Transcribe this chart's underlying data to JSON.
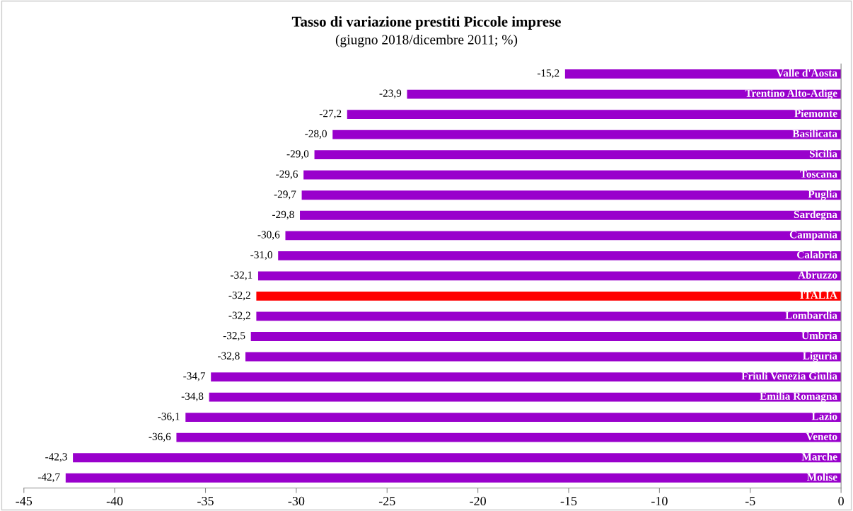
{
  "chart_data": {
    "type": "bar",
    "orientation": "horizontal",
    "title": "Tasso di variazione prestiti Piccole imprese",
    "subtitle": "(giugno 2018/dicembre 2011; %)",
    "categories": [
      "Valle d'Aosta",
      "Trentino Alto-Adige",
      "Piemonte",
      "Basilicata",
      "Sicilia",
      "Toscana",
      "Puglia",
      "Sardegna",
      "Campania",
      "Calabria",
      "Abruzzo",
      "ITALIA",
      "Lombardia",
      "Umbria",
      "Liguria",
      "Friuli Venezia Giulia",
      "Emilia Romagna",
      "Lazio",
      "Veneto",
      "Marche",
      "Molise"
    ],
    "values": [
      -15.2,
      -23.9,
      -27.2,
      -28.0,
      -29.0,
      -29.6,
      -29.7,
      -29.8,
      -30.6,
      -31.0,
      -32.1,
      -32.2,
      -32.2,
      -32.5,
      -32.8,
      -34.7,
      -34.8,
      -36.1,
      -36.6,
      -42.3,
      -42.7
    ],
    "value_labels": [
      "-15,2",
      "-23,9",
      "-27,2",
      "-28,0",
      "-29,0",
      "-29,6",
      "-29,7",
      "-29,8",
      "-30,6",
      "-31,0",
      "-32,1",
      "-32,2",
      "-32,2",
      "-32,5",
      "-32,8",
      "-34,7",
      "-34,8",
      "-36,1",
      "-36,6",
      "-42,3",
      "-42,7"
    ],
    "colors": [
      "#9900cc",
      "#9900cc",
      "#9900cc",
      "#9900cc",
      "#9900cc",
      "#9900cc",
      "#9900cc",
      "#9900cc",
      "#9900cc",
      "#9900cc",
      "#9900cc",
      "#ff0000",
      "#9900cc",
      "#9900cc",
      "#9900cc",
      "#9900cc",
      "#9900cc",
      "#9900cc",
      "#9900cc",
      "#9900cc",
      "#9900cc"
    ],
    "xlim": [
      -45,
      0
    ],
    "xticks": [
      -45,
      -40,
      -35,
      -30,
      -25,
      -20,
      -15,
      -10,
      -5,
      0
    ],
    "grid": false,
    "legend": false
  }
}
